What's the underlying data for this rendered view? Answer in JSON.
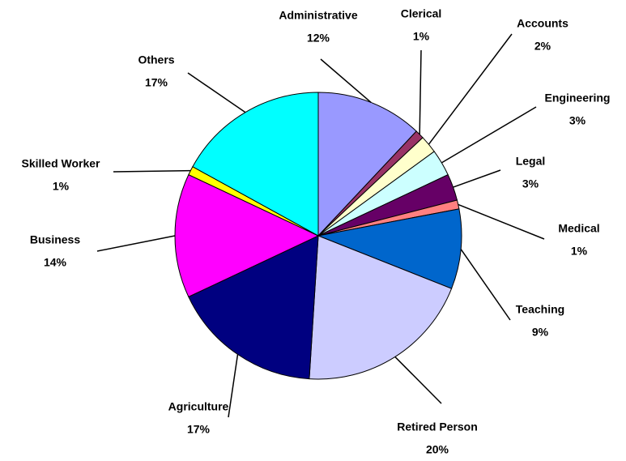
{
  "chart_data": {
    "type": "pie",
    "categories": [
      "Administrative",
      "Clerical",
      "Accounts",
      "Engineering",
      "Legal",
      "Medical",
      "Teaching",
      "Retired Person",
      "Agriculture",
      "Business",
      "Skilled Worker",
      "Others"
    ],
    "values": [
      12,
      1,
      2,
      3,
      3,
      1,
      9,
      20,
      17,
      14,
      1,
      17
    ],
    "value_labels": [
      "12%",
      "1%",
      "2%",
      "3%",
      "3%",
      "1%",
      "9%",
      "20%",
      "17%",
      "14%",
      "1%",
      "17%"
    ],
    "colors": [
      "#9999ff",
      "#993366",
      "#ffffcc",
      "#ccffff",
      "#660066",
      "#ff8080",
      "#0066cc",
      "#ccccff",
      "#000080",
      "#ff00ff",
      "#ffff00",
      "#00ffff"
    ]
  }
}
